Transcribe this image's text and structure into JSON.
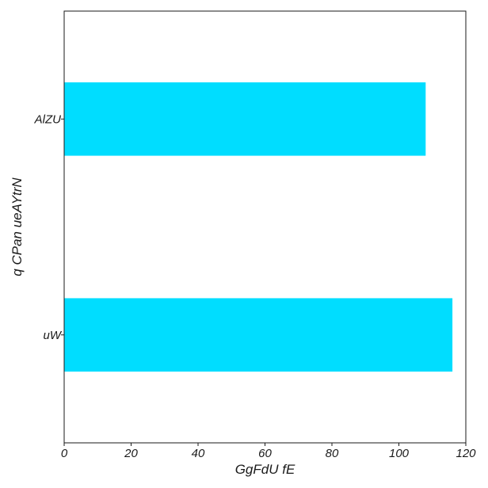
{
  "chart_data": {
    "type": "bar",
    "orientation": "horizontal",
    "categories": [
      "AlZU",
      "uW"
    ],
    "values": [
      108,
      116
    ],
    "xlabel": "GgFdU fE",
    "ylabel": "q CPan ueAYtrN",
    "xlim": [
      0,
      120
    ],
    "xticks": [
      0,
      20,
      40,
      60,
      80,
      100,
      120
    ],
    "grid": false,
    "bar_color": "#00DDFF"
  }
}
